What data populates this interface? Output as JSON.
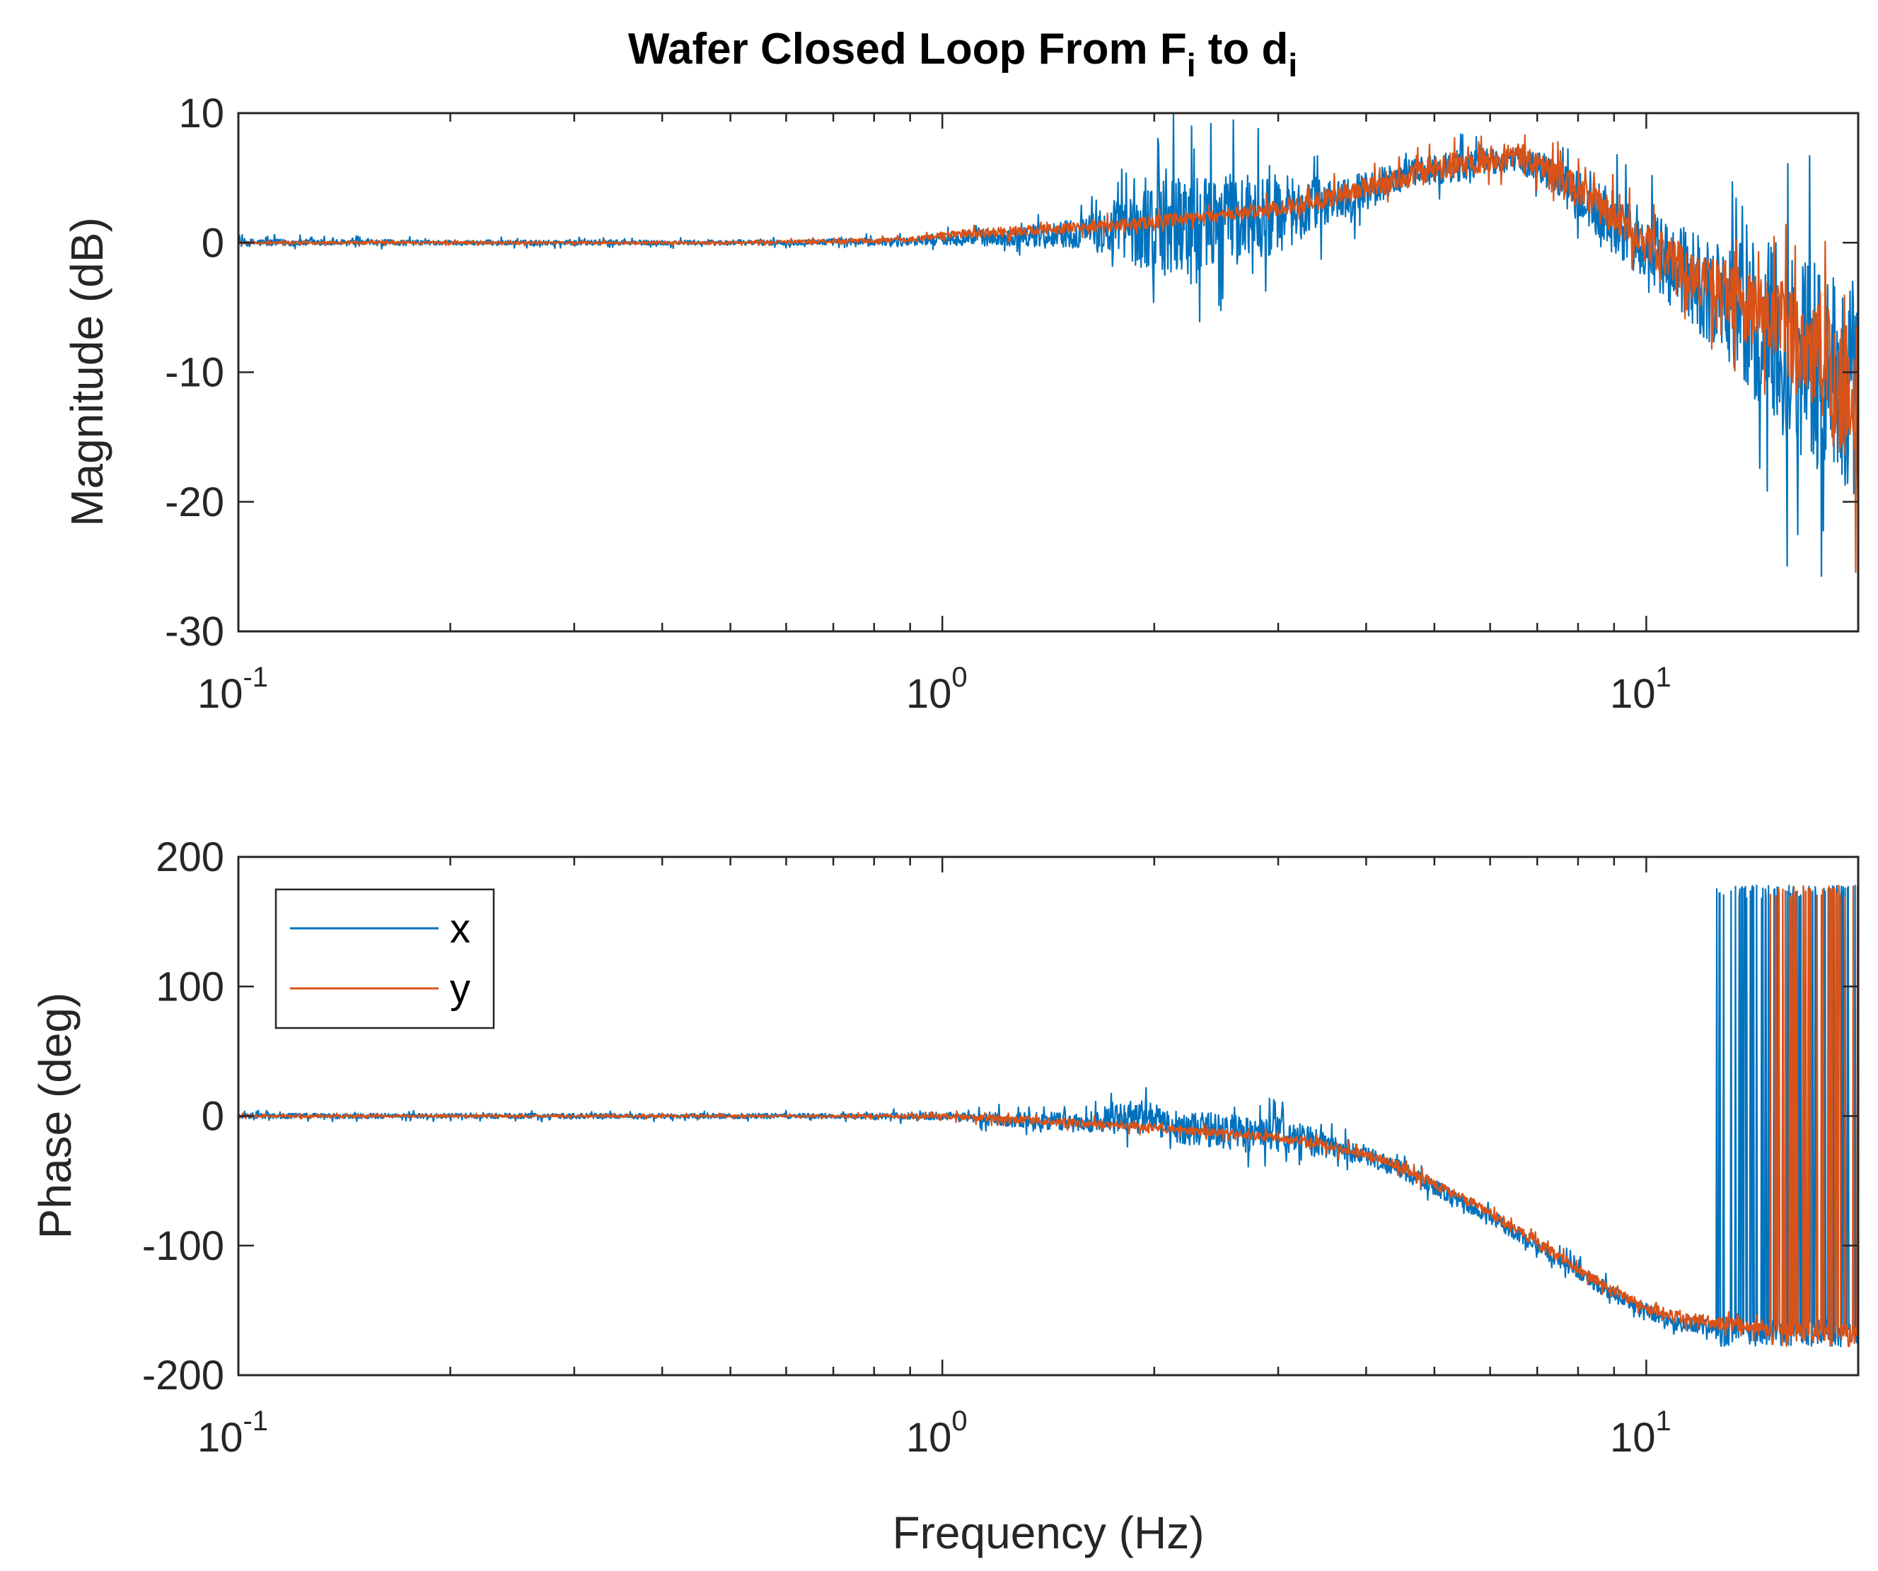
{
  "chart_data": [
    {
      "type": "line",
      "id": "magnitude",
      "title": "Wafer Closed Loop From F",
      "title_sub1": "i",
      "title_mid": " to d",
      "title_sub2": "i",
      "xlabel": "",
      "ylabel": "Magnitude (dB)",
      "xscale": "log",
      "xlim": [
        0.1,
        20
      ],
      "ylim": [
        -30,
        10
      ],
      "yticks": [
        10,
        0,
        -10,
        -20,
        -30
      ],
      "ytick_labels": [
        "10",
        "0",
        "-10",
        "-20",
        "-30"
      ],
      "xticks": [
        0.1,
        1,
        10
      ],
      "xtick_base": [
        "10",
        "10",
        "10"
      ],
      "xtick_exp": [
        "-1",
        "0",
        "1"
      ],
      "series": [
        {
          "name": "x",
          "color": "#0072BD",
          "x": [
            0.1,
            0.2,
            0.5,
            0.9,
            1.0,
            1.3,
            1.6,
            1.9,
            2.1,
            2.4,
            2.7,
            3.0,
            3.5,
            4.0,
            4.5,
            5.0,
            5.5,
            6.0,
            6.5,
            7.0,
            7.5,
            8.0,
            9.0,
            10.0,
            11.0,
            12.0,
            13.0,
            14.0,
            15.0,
            16.0,
            17.0,
            18.0,
            19.0,
            20.0
          ],
          "values": [
            0.0,
            0.0,
            0.0,
            0.1,
            0.3,
            0.5,
            0.8,
            1.0,
            1.4,
            1.6,
            2.0,
            2.2,
            3.0,
            4.0,
            5.2,
            5.6,
            6.0,
            6.3,
            6.4,
            6.0,
            5.0,
            3.5,
            1.5,
            -0.5,
            -2.0,
            -3.5,
            -4.5,
            -6.0,
            -7.0,
            -8.0,
            -9.0,
            -10.0,
            -11.0,
            -12.0
          ],
          "noise": [
            0.3,
            0.2,
            0.2,
            0.3,
            0.5,
            0.8,
            1.2,
            3.0,
            4.5,
            3.5,
            3.5,
            3.0,
            2.0,
            1.5,
            1.2,
            1.2,
            1.2,
            1.0,
            1.0,
            1.2,
            1.5,
            2.0,
            2.5,
            3.0,
            3.5,
            4.0,
            5.0,
            6.0,
            7.0,
            8.0,
            8.0,
            8.0,
            8.0,
            8.0
          ]
        },
        {
          "name": "y",
          "color": "#D95319",
          "x": [
            0.1,
            0.2,
            0.5,
            0.9,
            1.0,
            1.3,
            1.6,
            1.9,
            2.1,
            2.4,
            2.7,
            3.0,
            3.5,
            4.0,
            4.5,
            5.0,
            5.5,
            6.0,
            6.5,
            7.0,
            7.5,
            8.0,
            9.0,
            10.0,
            11.0,
            12.0,
            13.0,
            14.0,
            15.0,
            16.0,
            17.0,
            18.0,
            19.0,
            20.0
          ],
          "values": [
            0.0,
            0.0,
            0.0,
            0.2,
            0.6,
            0.9,
            1.2,
            1.5,
            1.7,
            2.0,
            2.3,
            2.7,
            3.4,
            4.2,
            5.0,
            5.6,
            6.1,
            6.6,
            6.8,
            6.2,
            5.2,
            4.0,
            2.0,
            0.0,
            -1.5,
            -3.0,
            -4.0,
            -5.0,
            -6.0,
            -7.0,
            -8.0,
            -9.5,
            -11.0,
            -12.5
          ],
          "noise": [
            0.1,
            0.1,
            0.1,
            0.2,
            0.3,
            0.4,
            0.4,
            0.5,
            0.5,
            0.5,
            0.5,
            0.6,
            0.8,
            0.8,
            0.9,
            1.0,
            1.0,
            1.0,
            1.0,
            1.0,
            1.2,
            1.2,
            1.5,
            1.5,
            1.8,
            2.0,
            2.5,
            3.0,
            3.5,
            4.0,
            5.0,
            5.5,
            6.0,
            6.5
          ]
        }
      ]
    },
    {
      "type": "line",
      "id": "phase",
      "xlabel": "Frequency (Hz)",
      "ylabel": "Phase (deg)",
      "xscale": "log",
      "xlim": [
        0.1,
        20
      ],
      "ylim": [
        -200,
        200
      ],
      "yticks": [
        200,
        100,
        0,
        -100,
        -200
      ],
      "ytick_labels": [
        "200",
        "100",
        "0",
        "-100",
        "-200"
      ],
      "xticks": [
        0.1,
        1,
        10
      ],
      "xtick_base": [
        "10",
        "10",
        "10"
      ],
      "xtick_exp": [
        "-1",
        "0",
        "1"
      ],
      "legend": {
        "location": "top-left",
        "entries": [
          "x",
          "y"
        ]
      },
      "series": [
        {
          "name": "x",
          "color": "#0072BD",
          "x": [
            0.1,
            0.3,
            0.7,
            1.0,
            1.3,
            1.6,
            1.9,
            2.1,
            2.5,
            3.0,
            3.5,
            4.0,
            4.5,
            5.0,
            6.0,
            7.0,
            8.0,
            9.0,
            10.0,
            11.0,
            12.0,
            12.5
          ],
          "values": [
            0,
            0,
            0,
            0,
            -3,
            -5,
            2,
            -8,
            -12,
            -15,
            -22,
            -30,
            -42,
            -55,
            -78,
            -100,
            -120,
            -138,
            -150,
            -160,
            -162,
            -163
          ],
          "noise": [
            2,
            2,
            2,
            3,
            6,
            8,
            12,
            12,
            14,
            14,
            10,
            8,
            7,
            6,
            6,
            6,
            6,
            6,
            6,
            6,
            6,
            6
          ],
          "wrap_from": 12.5,
          "wrap_range": [
            -178,
            178
          ]
        },
        {
          "name": "y",
          "color": "#D95319",
          "x": [
            0.1,
            0.3,
            0.7,
            1.0,
            1.3,
            1.6,
            1.9,
            2.1,
            2.5,
            3.0,
            3.5,
            4.0,
            4.5,
            5.0,
            6.0,
            7.0,
            8.0,
            9.0,
            10.0,
            11.0,
            12.0,
            13.0,
            14.0,
            15.0
          ],
          "values": [
            0,
            0,
            0,
            0,
            -3,
            -6,
            -8,
            -10,
            -13,
            -17,
            -22,
            -30,
            -40,
            -52,
            -75,
            -98,
            -118,
            -135,
            -148,
            -155,
            -158,
            -160,
            -163,
            -165
          ],
          "noise": [
            1,
            1,
            1,
            2,
            3,
            3,
            3,
            3,
            3,
            3,
            4,
            4,
            4,
            4,
            4,
            4,
            4,
            4,
            4,
            5,
            5,
            5,
            5,
            5
          ],
          "wrap_from": 15.0,
          "wrap_range": [
            -178,
            178
          ]
        }
      ]
    }
  ]
}
